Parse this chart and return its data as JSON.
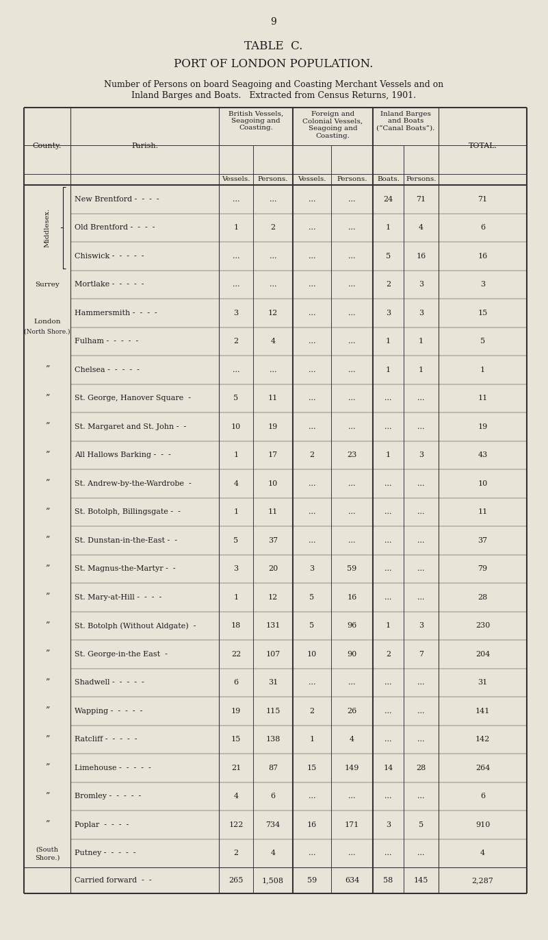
{
  "page_number": "9",
  "title1": "TABLE  C.",
  "title2": "PORT OF LONDON POPULATION.",
  "subtitle_line1": "Number of Persons on board Seagoing and Coasting Merchant Vessels and on",
  "subtitle_line2": "Inland Barges and Boats.   Extracted from Census Returns, 1901.",
  "county_col_header": "County.",
  "parish_col_header": "Parish.",
  "col_headers_top": [
    "British Vessels,\nSeagoing and\nCoasting.",
    "Foreign and\nColonial Vessels,\nSeagoing and\nCoasting.",
    "Inland Barges\nand Boats\n(“Canal Boats”).",
    "TOTAL."
  ],
  "col_headers_bottom": [
    "Vessels.",
    "Persons.",
    "Vessels.",
    "Persons.",
    "Boats.",
    "Persons."
  ],
  "rows": [
    {
      "county": "Middlesex.",
      "county_span": 3,
      "parish": "New Brentford -  -  -  -",
      "bv": "...",
      "bp": "...",
      "fv": "...",
      "fp": "...",
      "ib": "24",
      "ip": "71",
      "total": "71"
    },
    {
      "county": "",
      "county_span": 0,
      "parish": "Old Brentford -  -  -  -",
      "bv": "1",
      "bp": "2",
      "fv": "...",
      "fp": "...",
      "ib": "1",
      "ip": "4",
      "total": "6"
    },
    {
      "county": "",
      "county_span": 0,
      "parish": "Chiswick -  -  -  -  -",
      "bv": "...",
      "bp": "...",
      "fv": "...",
      "fp": "...",
      "ib": "5",
      "ip": "16",
      "total": "16"
    },
    {
      "county": "Surrey",
      "county_span": 1,
      "parish": "Mortlake -  -  -  -  -",
      "bv": "...",
      "bp": "...",
      "fv": "...",
      "fp": "...",
      "ib": "2",
      "ip": "3",
      "total": "3"
    },
    {
      "county": "London\n(North Shore.)",
      "county_span": 2,
      "parish": "Hammersmith -  -  -  -",
      "bv": "3",
      "bp": "12",
      "fv": "...",
      "fp": "...",
      "ib": "3",
      "ip": "3",
      "total": "15"
    },
    {
      "county": "”",
      "county_span": 1,
      "parish": "Fulham -  -  -  -  -",
      "bv": "2",
      "bp": "4",
      "fv": "...",
      "fp": "...",
      "ib": "1",
      "ip": "1",
      "total": "5"
    },
    {
      "county": "”",
      "county_span": 1,
      "parish": "Chelsea -  -  -  -  -",
      "bv": "...",
      "bp": "...",
      "fv": "...",
      "fp": "...",
      "ib": "1",
      "ip": "1",
      "total": "1"
    },
    {
      "county": "”",
      "county_span": 1,
      "parish": "St. George, Hanover Square  -",
      "bv": "5",
      "bp": "11",
      "fv": "...",
      "fp": "...",
      "ib": "...",
      "ip": "...",
      "total": "11"
    },
    {
      "county": "”",
      "county_span": 1,
      "parish": "St. Margaret and St. John -  -",
      "bv": "10",
      "bp": "19",
      "fv": "...",
      "fp": "...",
      "ib": "...",
      "ip": "...",
      "total": "19"
    },
    {
      "county": "”",
      "county_span": 1,
      "parish": "All Hallows Barking -  -  -",
      "bv": "1",
      "bp": "17",
      "fv": "2",
      "fp": "23",
      "ib": "1",
      "ip": "3",
      "total": "43"
    },
    {
      "county": "”",
      "county_span": 1,
      "parish": "St. Andrew-by-the-Wardrobe  -",
      "bv": "4",
      "bp": "10",
      "fv": "...",
      "fp": "...",
      "ib": "...",
      "ip": "...",
      "total": "10"
    },
    {
      "county": "”",
      "county_span": 1,
      "parish": "St. Botolph, Billingsgate -  -",
      "bv": "1",
      "bp": "11",
      "fv": "...",
      "fp": "...",
      "ib": "...",
      "ip": "...",
      "total": "11"
    },
    {
      "county": "”",
      "county_span": 1,
      "parish": "St. Dunstan-in-the-East -  -",
      "bv": "5",
      "bp": "37",
      "fv": "...",
      "fp": "...",
      "ib": "...",
      "ip": "...",
      "total": "37"
    },
    {
      "county": "”",
      "county_span": 1,
      "parish": "St. Magnus-the-Martyr -  -",
      "bv": "3",
      "bp": "20",
      "fv": "3",
      "fp": "59",
      "ib": "...",
      "ip": "...",
      "total": "79"
    },
    {
      "county": "”",
      "county_span": 1,
      "parish": "St. Mary-at-Hill -  -  -  -",
      "bv": "1",
      "bp": "12",
      "fv": "5",
      "fp": "16",
      "ib": "...",
      "ip": "...",
      "total": "28"
    },
    {
      "county": "”",
      "county_span": 1,
      "parish": "St. Botolph (Without Aldgate)  -",
      "bv": "18",
      "bp": "131",
      "fv": "5",
      "fp": "96",
      "ib": "1",
      "ip": "3",
      "total": "230"
    },
    {
      "county": "”",
      "county_span": 1,
      "parish": "St. George-in-the East  -",
      "bv": "22",
      "bp": "107",
      "fv": "10",
      "fp": "90",
      "ib": "2",
      "ip": "7",
      "total": "204"
    },
    {
      "county": "”",
      "county_span": 1,
      "parish": "Shadwell -  -  -  -  -",
      "bv": "6",
      "bp": "31",
      "fv": "...",
      "fp": "...",
      "ib": "...",
      "ip": "...",
      "total": "31"
    },
    {
      "county": "”",
      "county_span": 1,
      "parish": "Wapping -  -  -  -  -",
      "bv": "19",
      "bp": "115",
      "fv": "2",
      "fp": "26",
      "ib": "...",
      "ip": "...",
      "total": "141"
    },
    {
      "county": "”",
      "county_span": 1,
      "parish": "Ratcliff -  -  -  -  -",
      "bv": "15",
      "bp": "138",
      "fv": "1",
      "fp": "4",
      "ib": "...",
      "ip": "...",
      "total": "142"
    },
    {
      "county": "”",
      "county_span": 1,
      "parish": "Limehouse -  -  -  -  -",
      "bv": "21",
      "bp": "87",
      "fv": "15",
      "fp": "149",
      "ib": "14",
      "ip": "28",
      "total": "264"
    },
    {
      "county": "”",
      "county_span": 1,
      "parish": "Bromley -  -  -  -  -",
      "bv": "4",
      "bp": "6",
      "fv": "...",
      "fp": "...",
      "ib": "...",
      "ip": "...",
      "total": "6"
    },
    {
      "county": "”",
      "county_span": 1,
      "parish": "Poplar  -  -  -  -",
      "bv": "122",
      "bp": "734",
      "fv": "16",
      "fp": "171",
      "ib": "3",
      "ip": "5",
      "total": "910"
    },
    {
      "county": "(South Shore.)",
      "county_span": 1,
      "parish": "Putney -  -  -  -  -",
      "bv": "2",
      "bp": "4",
      "fv": "...",
      "fp": "...",
      "ib": "...",
      "ip": "...",
      "total": "4"
    }
  ],
  "footer_row": {
    "label": "Carried forward  -  -",
    "bv": "265",
    "bp": "1,508",
    "fv": "59",
    "fp": "634",
    "ib": "58",
    "ip": "145",
    "total": "2,287"
  },
  "bg_color": "#e8e4d8",
  "text_color": "#1a1a1a",
  "line_color": "#333333"
}
